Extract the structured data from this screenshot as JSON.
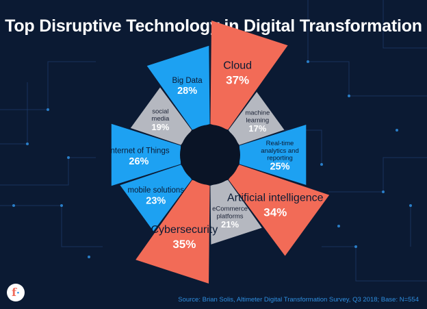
{
  "page": {
    "title": "Top Disruptive Technology in Digital Transformation",
    "source": "Source: Brian Solis, Altimeter Digital Transformation Survey, Q3 2018; Base: N=554",
    "logo_glyph": "f",
    "logo_icon": "brand-f-logo"
  },
  "colors": {
    "background": "#0b1a33",
    "blue": "#1da1f2",
    "red": "#f26b57",
    "gray": "#b5b8c0",
    "hub": "#0a1426"
  },
  "chart_data": {
    "type": "polar-bar",
    "title": "Top Disruptive Technology in Digital Transformation",
    "unit": "%",
    "categories": [
      "Cloud",
      "machine learning",
      "Real-time analytics and reporting",
      "Artificial intelligence",
      "eCommerce platforms",
      "Cybersecurity",
      "mobile solutions",
      "Internet of Things",
      "social media",
      "Big Data"
    ],
    "values": [
      37,
      17,
      25,
      34,
      21,
      35,
      23,
      26,
      19,
      28
    ],
    "labels": [
      [
        "Cloud"
      ],
      [
        "machine",
        "learning"
      ],
      [
        "Real-time",
        "analytics and",
        "reporting"
      ],
      [
        "Artificial intelligence"
      ],
      [
        "eCommerce",
        "platforms"
      ],
      [
        "Cybersecurity"
      ],
      [
        "mobile solutions"
      ],
      [
        "Internet of Things"
      ],
      [
        "social",
        "media"
      ],
      [
        "Big Data"
      ]
    ],
    "value_labels": [
      "37%",
      "17%",
      "25%",
      "34%",
      "21%",
      "35%",
      "23%",
      "26%",
      "19%",
      "28%"
    ],
    "colors": [
      "red",
      "gray",
      "blue",
      "red",
      "gray",
      "red",
      "blue",
      "blue",
      "gray",
      "blue"
    ]
  }
}
